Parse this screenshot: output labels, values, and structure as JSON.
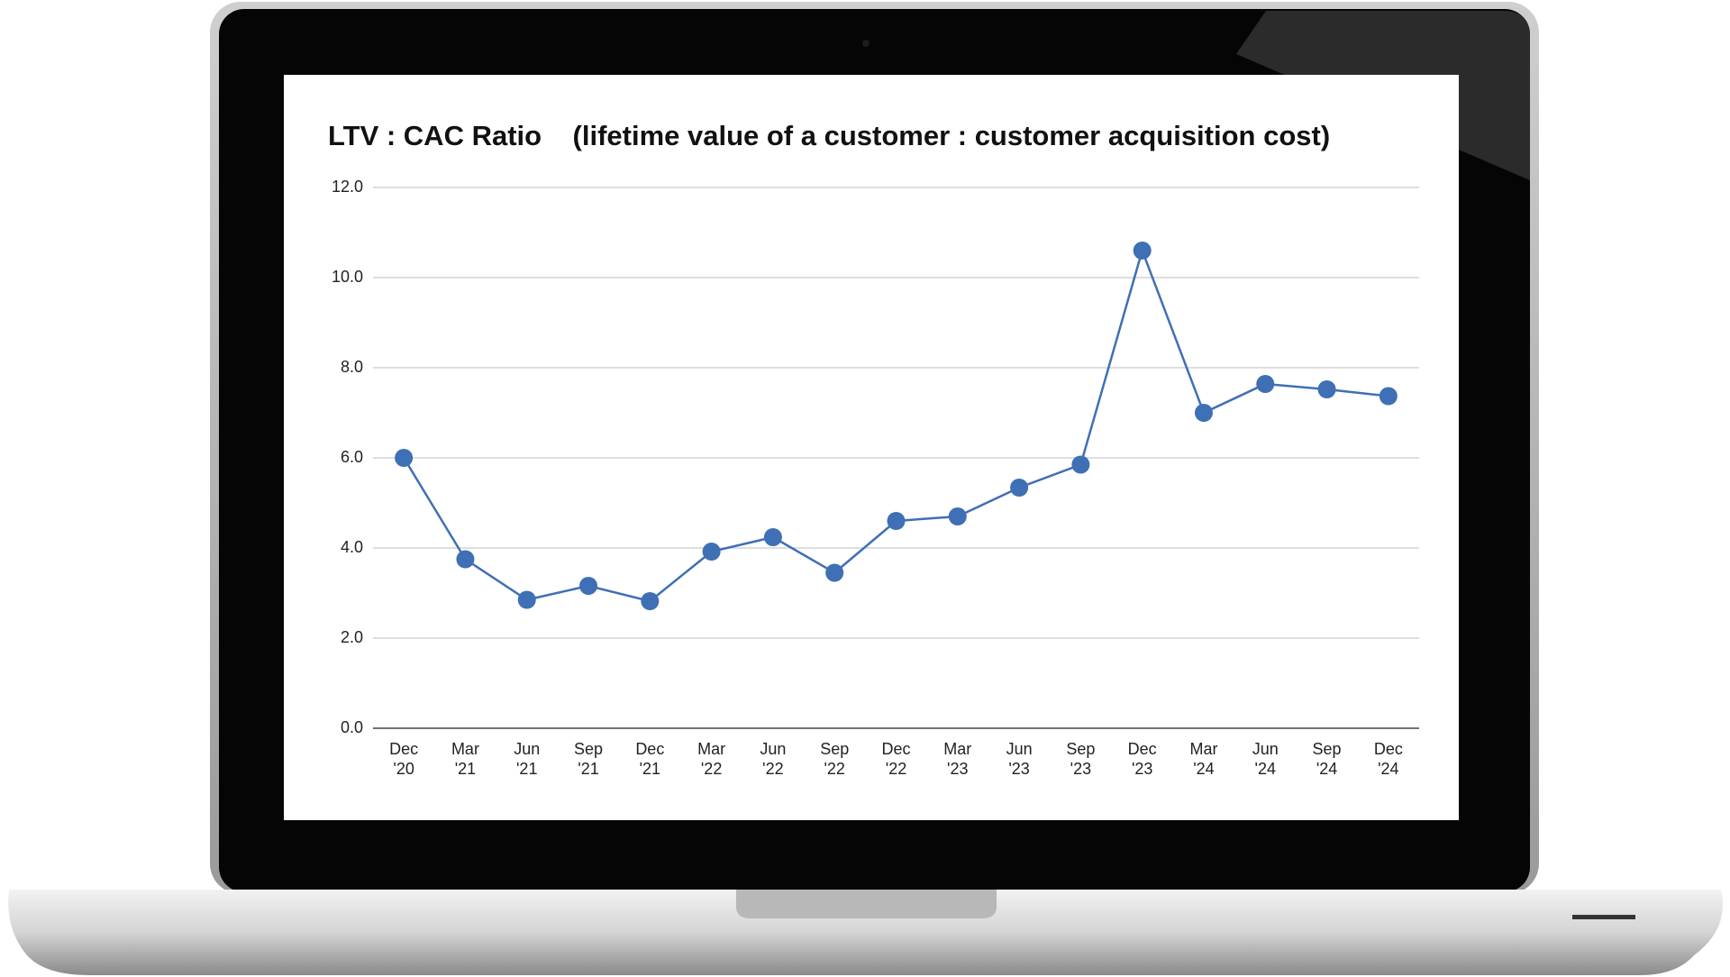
{
  "chart_data": {
    "type": "line",
    "title": "LTV : CAC Ratio    (lifetime value of a customer : customer acquisition cost)",
    "categories": [
      "Dec '20",
      "Mar '21",
      "Jun '21",
      "Sep '21",
      "Dec '21",
      "Mar '22",
      "Jun '22",
      "Sep '22",
      "Dec '22",
      "Mar '23",
      "Jun '23",
      "Sep '23",
      "Dec '23",
      "Mar '24",
      "Jun '24",
      "Sep '24",
      "Dec '24"
    ],
    "series": [
      {
        "color": "#3f6fb5",
        "values": [
          6.0,
          3.75,
          2.85,
          3.16,
          2.82,
          3.92,
          4.24,
          3.45,
          4.6,
          4.7,
          5.34,
          5.85,
          10.6,
          7.0,
          7.64,
          7.52,
          7.37
        ]
      }
    ],
    "ylim": [
      0,
      12
    ],
    "yticks": [
      {
        "value": 0,
        "label": "0.0"
      },
      {
        "value": 2,
        "label": "2.0"
      },
      {
        "value": 4,
        "label": "4.0"
      },
      {
        "value": 6,
        "label": "6.0"
      },
      {
        "value": 8,
        "label": "8.0"
      },
      {
        "value": 10,
        "label": "10.0"
      },
      {
        "value": 12,
        "label": "12.0"
      }
    ],
    "grid": true
  }
}
